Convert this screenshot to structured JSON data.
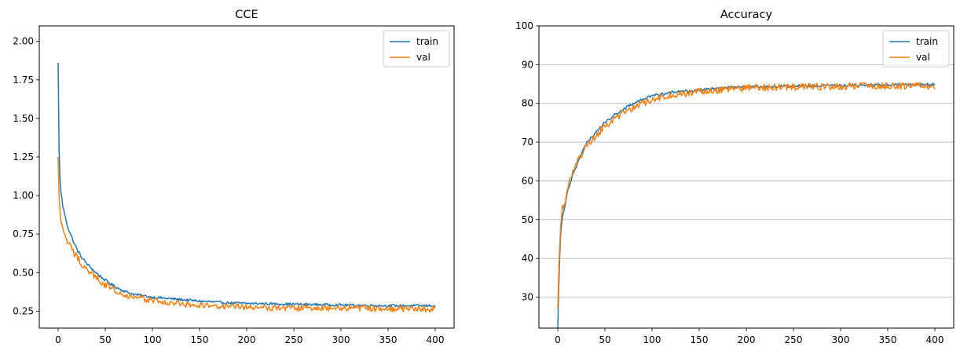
{
  "chart_data": [
    {
      "type": "line",
      "title": "CCE",
      "xlabel": "",
      "ylabel": "",
      "xlim": [
        -20,
        420
      ],
      "ylim": [
        0.14,
        2.1
      ],
      "xticks": [
        0,
        50,
        100,
        150,
        200,
        250,
        300,
        350,
        400
      ],
      "yticks": [
        0.25,
        0.5,
        0.75,
        1.0,
        1.25,
        1.5,
        1.75,
        2.0
      ],
      "ytick_labels": [
        "0.25",
        "0.50",
        "0.75",
        "1.00",
        "1.25",
        "1.50",
        "1.75",
        "2.00"
      ],
      "grid": false,
      "legend_position": "top-right",
      "series": [
        {
          "name": "train",
          "color": "#1f77b4",
          "x": [
            0,
            1,
            2,
            3,
            5,
            8,
            10,
            15,
            20,
            25,
            30,
            40,
            50,
            60,
            70,
            80,
            90,
            100,
            120,
            150,
            175,
            200,
            250,
            300,
            350,
            400
          ],
          "y": [
            1.86,
            1.3,
            1.1,
            1.02,
            0.93,
            0.85,
            0.8,
            0.72,
            0.65,
            0.6,
            0.56,
            0.5,
            0.45,
            0.41,
            0.38,
            0.36,
            0.35,
            0.34,
            0.33,
            0.315,
            0.305,
            0.3,
            0.295,
            0.29,
            0.285,
            0.285
          ]
        },
        {
          "name": "val",
          "color": "#ff7f0e",
          "x": [
            0,
            1,
            2,
            3,
            5,
            8,
            10,
            15,
            20,
            25,
            30,
            40,
            50,
            60,
            70,
            80,
            90,
            100,
            120,
            150,
            175,
            200,
            250,
            300,
            350,
            400
          ],
          "y": [
            1.25,
            1.0,
            0.9,
            0.83,
            0.77,
            0.73,
            0.7,
            0.64,
            0.6,
            0.56,
            0.52,
            0.47,
            0.42,
            0.39,
            0.36,
            0.34,
            0.33,
            0.32,
            0.3,
            0.29,
            0.28,
            0.275,
            0.27,
            0.27,
            0.265,
            0.265
          ]
        }
      ]
    },
    {
      "type": "line",
      "title": "Accuracy",
      "xlabel": "",
      "ylabel": "",
      "xlim": [
        -20,
        420
      ],
      "ylim": [
        22,
        100
      ],
      "xticks": [
        0,
        50,
        100,
        150,
        200,
        250,
        300,
        350,
        400
      ],
      "yticks": [
        30,
        40,
        50,
        60,
        70,
        80,
        90,
        100
      ],
      "ytick_labels": [
        "30",
        "40",
        "50",
        "60",
        "70",
        "80",
        "90",
        "100"
      ],
      "grid": true,
      "legend_position": "top-right",
      "series": [
        {
          "name": "train",
          "color": "#1f77b4",
          "x": [
            0,
            1,
            2,
            3,
            5,
            8,
            10,
            15,
            20,
            25,
            30,
            40,
            50,
            60,
            70,
            80,
            90,
            100,
            120,
            150,
            175,
            200,
            250,
            300,
            350,
            400
          ],
          "y": [
            22,
            32,
            40,
            46,
            51,
            54,
            57,
            61,
            64,
            67,
            69.5,
            72.5,
            75,
            77,
            78.5,
            80,
            81,
            82,
            82.8,
            83.5,
            84,
            84.2,
            84.5,
            84.6,
            84.8,
            84.9
          ]
        },
        {
          "name": "val",
          "color": "#ff7f0e",
          "x": [
            0,
            1,
            2,
            3,
            5,
            8,
            10,
            15,
            20,
            25,
            30,
            40,
            50,
            60,
            70,
            80,
            90,
            100,
            120,
            150,
            175,
            200,
            250,
            300,
            350,
            400
          ],
          "y": [
            27,
            36,
            43,
            48,
            53,
            55,
            58,
            62,
            65,
            66.5,
            69,
            71.5,
            74,
            76,
            77.5,
            79,
            80,
            81,
            82,
            83,
            83.5,
            84,
            84.2,
            84.4,
            84.5,
            84.5
          ]
        }
      ]
    }
  ]
}
